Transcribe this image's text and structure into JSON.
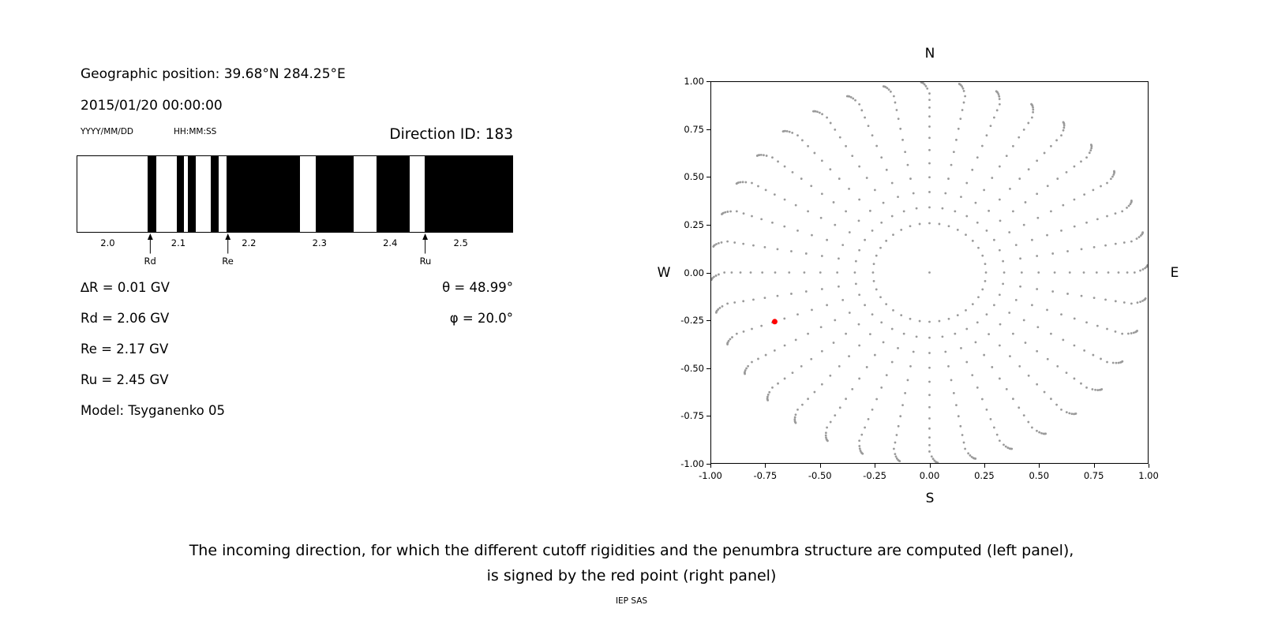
{
  "left": {
    "geo_position": "Geographic position: 39.68°N 284.25°E",
    "datetime": "2015/01/20 00:00:00",
    "date_format": "YYYY/MM/DD",
    "time_format": "HH:MM:SS",
    "direction_id": "Direction ID: 183",
    "annotations": [
      "∆R = 0.01 GV",
      "Rd = 2.06 GV",
      "Re = 2.17 GV",
      "Ru = 2.45 GV",
      "Model: Tsyganenko 05"
    ],
    "theta": "θ = 48.99°",
    "phi": "φ = 20.0°"
  },
  "caption": {
    "line1": "The incoming direction, for which the different cutoff rigidities and the penumbra structure are computed (left panel),",
    "line2": "is signed by the red point (right panel)",
    "credit": "IEP SAS"
  },
  "chart_data": [
    {
      "type": "barcode",
      "description": "Penumbra structure: black bands mark forbidden rigidity intervals",
      "xlim": [
        1.957,
        2.573
      ],
      "xticks": [
        2.0,
        2.1,
        2.2,
        2.3,
        2.4,
        2.5
      ],
      "xtick_labels": [
        "2.0",
        "2.1",
        "2.2",
        "2.3",
        "2.4",
        "2.5"
      ],
      "black_bands": [
        [
          2.057,
          2.069
        ],
        [
          2.098,
          2.108
        ],
        [
          2.114,
          2.125
        ],
        [
          2.146,
          2.157
        ],
        [
          2.168,
          2.272
        ],
        [
          2.295,
          2.348
        ],
        [
          2.381,
          2.428
        ],
        [
          2.449,
          2.573
        ]
      ],
      "markers": [
        {
          "label": "Rd",
          "x": 2.06
        },
        {
          "label": "Re",
          "x": 2.17
        },
        {
          "label": "Ru",
          "x": 2.45
        }
      ],
      "values": {
        "delta_R_GV": 0.01,
        "Rd_GV": 2.06,
        "Re_GV": 2.17,
        "Ru_GV": 2.45,
        "theta_deg": 48.99,
        "phi_deg": 20.0,
        "model": "Tsyganenko 05",
        "direction_id": 183
      },
      "band_color": "#000000"
    },
    {
      "type": "scatter",
      "description": "Grid of incoming directions (gray dots); selected direction shown as red point",
      "xlim": [
        -1,
        1
      ],
      "ylim": [
        -1,
        1
      ],
      "xticks": [
        -1.0,
        -0.75,
        -0.5,
        -0.25,
        0.0,
        0.25,
        0.5,
        0.75,
        1.0
      ],
      "xtick_labels": [
        "-1.00",
        "-0.75",
        "-0.50",
        "-0.25",
        "0.00",
        "0.25",
        "0.50",
        "0.75",
        "1.00"
      ],
      "yticks": [
        1.0,
        0.75,
        0.5,
        0.25,
        0.0,
        -0.25,
        -0.5,
        -0.75,
        -1.0
      ],
      "ytick_labels": [
        "1.00",
        "0.75",
        "0.50",
        "0.25",
        "0.00",
        "-0.25",
        "-0.50",
        "-0.75",
        "-1.00"
      ],
      "axis_labels": {
        "top": "N",
        "bottom": "S",
        "left": "W",
        "right": "E"
      },
      "grid": {
        "azimuth_count": 36,
        "zenith_deg": [
          15,
          20,
          25,
          30,
          35,
          40,
          45,
          50,
          55,
          60,
          65,
          70,
          75,
          78,
          81,
          84,
          86,
          88
        ],
        "radius_mapping": "sin(zenith)",
        "bend_start_deg": 70,
        "bend_deg_per_deg": 0.12,
        "center_dot": true,
        "dot_color": "#9a9a9a",
        "dot_radius_px": 1.4
      },
      "red_point": {
        "x": -0.709,
        "y": -0.258,
        "theta_deg": 48.99,
        "phi_deg": 20.0,
        "color": "#ff0000",
        "radius_px": 3.5
      }
    }
  ]
}
